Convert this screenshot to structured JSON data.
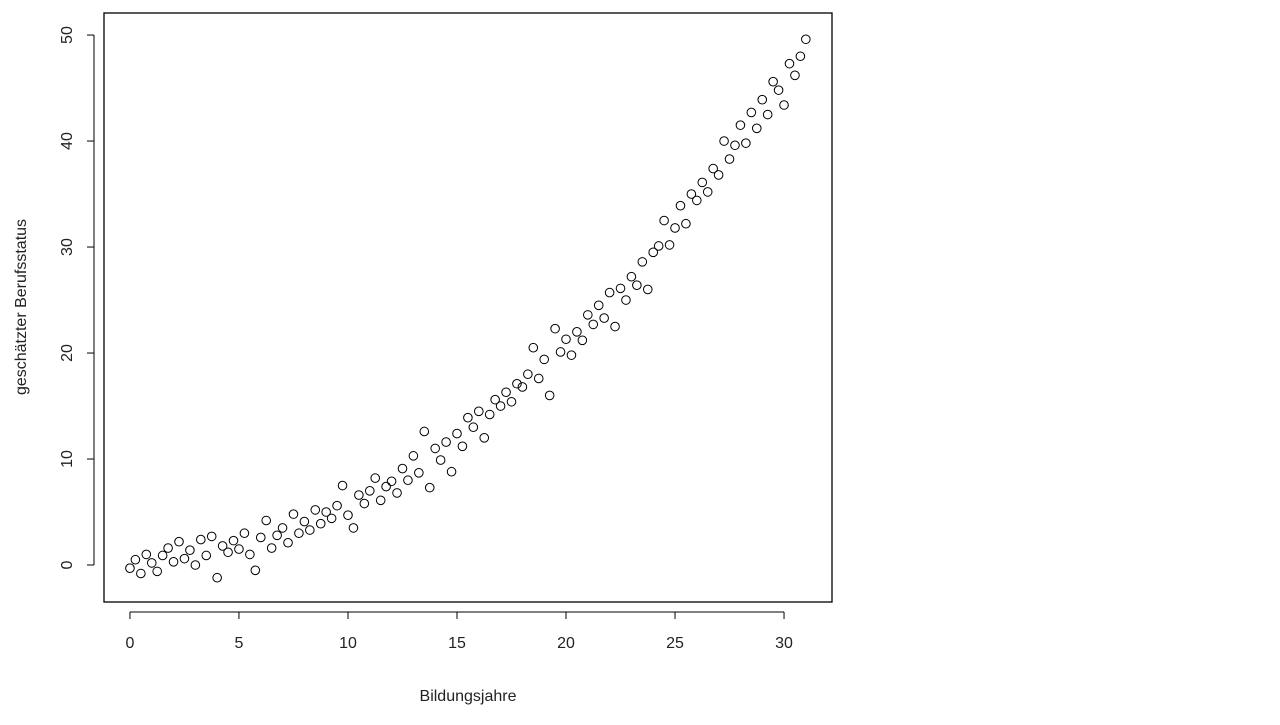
{
  "chart_data": {
    "type": "scatter",
    "x_label": "Bildungsjahre",
    "y_label": "geschätzter Berufsstatus",
    "color": "#000000",
    "xlim": [
      -1.19,
      32.2
    ],
    "ylim": [
      -3.49,
      52.08
    ],
    "xticks": [
      0,
      5,
      10,
      15,
      20,
      25,
      30
    ],
    "yticks": [
      0,
      10,
      20,
      30,
      40,
      50
    ],
    "x": [
      0,
      0.25,
      0.5,
      0.75,
      1,
      1.25,
      1.5,
      1.75,
      2,
      2.25,
      2.5,
      2.75,
      3,
      3.25,
      3.5,
      3.75,
      4,
      4.25,
      4.5,
      4.75,
      5,
      5.25,
      5.5,
      5.75,
      6,
      6.25,
      6.5,
      6.75,
      7,
      7.25,
      7.5,
      7.75,
      8,
      8.25,
      8.5,
      8.75,
      9,
      9.25,
      9.5,
      9.75,
      10,
      10.25,
      10.5,
      10.75,
      11,
      11.25,
      11.5,
      11.75,
      12,
      12.25,
      12.5,
      12.75,
      13,
      13.25,
      13.5,
      13.75,
      14,
      14.25,
      14.5,
      14.75,
      15,
      15.25,
      15.5,
      15.75,
      16,
      16.25,
      16.5,
      16.75,
      17,
      17.25,
      17.5,
      17.75,
      18,
      18.25,
      18.5,
      18.75,
      19,
      19.25,
      19.5,
      19.75,
      20,
      20.25,
      20.5,
      20.75,
      21,
      21.25,
      21.5,
      21.75,
      22,
      22.25,
      22.5,
      22.75,
      23,
      23.25,
      23.5,
      23.75,
      24,
      24.25,
      24.5,
      24.75,
      25,
      25.25,
      25.5,
      25.75,
      26,
      26.25,
      26.5,
      26.75,
      27,
      27.25,
      27.5,
      27.75,
      28,
      28.25,
      28.5,
      28.75,
      29,
      29.25,
      29.5,
      29.75,
      30,
      30.25,
      30.5,
      30.75,
      31
    ],
    "values": [
      -0.3,
      0.5,
      -0.8,
      1.0,
      0.2,
      -0.6,
      0.9,
      1.6,
      0.3,
      2.2,
      0.6,
      1.4,
      0.0,
      2.4,
      0.9,
      2.7,
      -1.2,
      1.8,
      1.2,
      2.3,
      1.5,
      3.0,
      1.0,
      -0.5,
      2.6,
      4.2,
      1.6,
      2.8,
      3.5,
      2.1,
      4.8,
      3.0,
      4.1,
      3.3,
      5.2,
      3.9,
      5.0,
      4.4,
      5.6,
      7.5,
      4.7,
      3.5,
      6.6,
      5.8,
      7.0,
      8.2,
      6.1,
      7.4,
      7.9,
      6.8,
      9.1,
      8.0,
      10.3,
      8.7,
      12.6,
      7.3,
      11.0,
      9.9,
      11.6,
      8.8,
      12.4,
      11.2,
      13.9,
      13.0,
      14.5,
      12.0,
      14.2,
      15.6,
      15.0,
      16.3,
      15.4,
      17.1,
      16.8,
      18.0,
      20.5,
      17.6,
      19.4,
      16.0,
      22.3,
      20.1,
      21.3,
      19.8,
      22.0,
      21.2,
      23.6,
      22.7,
      24.5,
      23.3,
      25.7,
      22.5,
      26.1,
      25.0,
      27.2,
      26.4,
      28.6,
      26.0,
      29.5,
      30.1,
      32.5,
      30.2,
      31.8,
      33.9,
      32.2,
      35.0,
      34.4,
      36.1,
      35.2,
      37.4,
      36.8,
      40.0,
      38.3,
      39.6,
      41.5,
      39.8,
      42.7,
      41.2,
      43.9,
      42.5,
      45.6,
      44.8,
      43.4,
      47.3,
      46.2,
      48.0,
      49.6
    ]
  }
}
